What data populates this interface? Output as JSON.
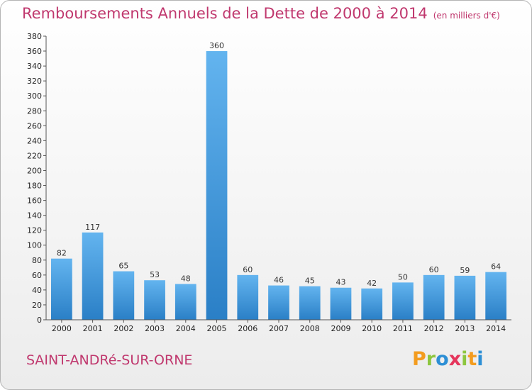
{
  "title": "Remboursements Annuels de la Dette de 2000 à 2014",
  "unit": "(en milliers d'€)",
  "commune": "SAINT-ANDRé-SUR-ORNE",
  "logo": {
    "letters": [
      "P",
      "r",
      "o",
      "x",
      "i",
      "t",
      "i"
    ],
    "colors": [
      "#f39c1f",
      "#8dc63f",
      "#2d8fd5",
      "#e5355b",
      "#8dc63f",
      "#f39c1f",
      "#2d8fd5"
    ]
  },
  "colors": {
    "bar_light": "#63b4ef",
    "bar_dark": "#2a7fc6",
    "title": "#c0386e"
  },
  "chart_data": {
    "type": "bar",
    "categories": [
      "2000",
      "2001",
      "2002",
      "2003",
      "2004",
      "2005",
      "2006",
      "2007",
      "2008",
      "2009",
      "2010",
      "2011",
      "2012",
      "2013",
      "2014"
    ],
    "values": [
      82,
      117,
      65,
      53,
      48,
      360,
      60,
      46,
      45,
      43,
      42,
      50,
      60,
      59,
      64
    ],
    "ylim": [
      0,
      380
    ],
    "yticks": [
      0,
      20,
      40,
      60,
      80,
      100,
      120,
      140,
      160,
      180,
      200,
      220,
      240,
      260,
      280,
      300,
      320,
      340,
      360,
      380
    ],
    "grid": false,
    "data_labels": true
  }
}
